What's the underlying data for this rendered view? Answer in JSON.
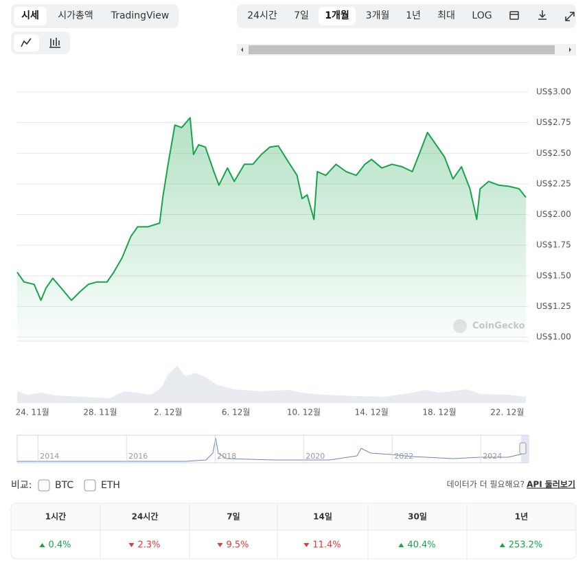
{
  "tabs": [
    "시세",
    "시가총액",
    "TradingView"
  ],
  "ranges": [
    "24시간",
    "7일",
    "1개월",
    "3개월",
    "1년",
    "최대",
    "LOG"
  ],
  "chart_data": {
    "type": "line",
    "color": "#16a34a",
    "grid": true,
    "watermark": "CoinGecko",
    "x": [
      -0.9,
      -0.5,
      0.1,
      0.5,
      0.8,
      1.2,
      1.7,
      2.3,
      2.8,
      3.3,
      3.8,
      4.4,
      4.8,
      5.3,
      5.8,
      6.2,
      6.8,
      7.5,
      7.7,
      8.0,
      8.4,
      8.8,
      9.3,
      9.5,
      9.8,
      10.2,
      10.7,
      11.0,
      11.5,
      11.9,
      12.5,
      13.0,
      13.5,
      14.0,
      14.5,
      15.0,
      15.6,
      15.9,
      16.2,
      16.6,
      16.8,
      17.3,
      17.9,
      18.5,
      19.1,
      19.6,
      20.0,
      20.6,
      21.2,
      21.8,
      22.4,
      22.8,
      23.3,
      23.8,
      24.3,
      24.8,
      25.3,
      25.8,
      26.2,
      26.4,
      26.9,
      27.5,
      28.1,
      28.7,
      29.1
    ],
    "values": [
      1.53,
      1.45,
      1.43,
      1.3,
      1.4,
      1.48,
      1.4,
      1.3,
      1.37,
      1.43,
      1.45,
      1.45,
      1.53,
      1.65,
      1.82,
      1.9,
      1.9,
      1.93,
      2.15,
      2.41,
      2.73,
      2.71,
      2.79,
      2.49,
      2.57,
      2.55,
      2.35,
      2.24,
      2.38,
      2.27,
      2.41,
      2.41,
      2.49,
      2.55,
      2.56,
      2.45,
      2.32,
      2.13,
      2.16,
      1.96,
      2.35,
      2.32,
      2.41,
      2.35,
      2.32,
      2.41,
      2.45,
      2.38,
      2.41,
      2.39,
      2.35,
      2.49,
      2.67,
      2.57,
      2.47,
      2.29,
      2.39,
      2.21,
      1.96,
      2.21,
      2.27,
      2.24,
      2.23,
      2.21,
      2.14
    ],
    "xlim": [
      -0.9,
      29.1
    ],
    "xticks": [
      {
        "value": 0,
        "label": "24. 11월"
      },
      {
        "value": 4,
        "label": "28. 11월"
      },
      {
        "value": 8,
        "label": "2. 12월"
      },
      {
        "value": 12,
        "label": "6. 12월"
      },
      {
        "value": 16,
        "label": "10. 12월"
      },
      {
        "value": 20,
        "label": "14. 12월"
      },
      {
        "value": 24,
        "label": "18. 12월"
      },
      {
        "value": 28,
        "label": "22. 12월"
      }
    ],
    "ylim": [
      1,
      3
    ],
    "yticks": [
      {
        "value": 1,
        "label": "US$1.00"
      },
      {
        "value": 1.25,
        "label": "US$1.25"
      },
      {
        "value": 1.5,
        "label": "US$1.50"
      },
      {
        "value": 1.75,
        "label": "US$1.75"
      },
      {
        "value": 2,
        "label": "US$2.00"
      },
      {
        "value": 2.25,
        "label": "US$2.25"
      },
      {
        "value": 2.5,
        "label": "US$2.50"
      },
      {
        "value": 2.75,
        "label": "US$2.75"
      },
      {
        "value": 3,
        "label": "US$3.00"
      }
    ]
  },
  "navigator": {
    "xlim": [
      2013.53,
      2025.02
    ],
    "xticks": [
      2014,
      2016,
      2018,
      2020,
      2022,
      2024
    ]
  },
  "compare": {
    "label": "비교:",
    "options": [
      "BTC",
      "ETH"
    ]
  },
  "api": {
    "prompt": "데이터가 더 필요해요?",
    "link": "API 둘러보기"
  },
  "changes": [
    {
      "period": "1시간",
      "change": "0.4%",
      "direction": "up"
    },
    {
      "period": "24시간",
      "change": "2.3%",
      "direction": "down"
    },
    {
      "period": "7일",
      "change": "9.5%",
      "direction": "down"
    },
    {
      "period": "14일",
      "change": "11.4%",
      "direction": "down"
    },
    {
      "period": "30일",
      "change": "40.4%",
      "direction": "up"
    },
    {
      "period": "1년",
      "change": "253.2%",
      "direction": "up"
    }
  ]
}
